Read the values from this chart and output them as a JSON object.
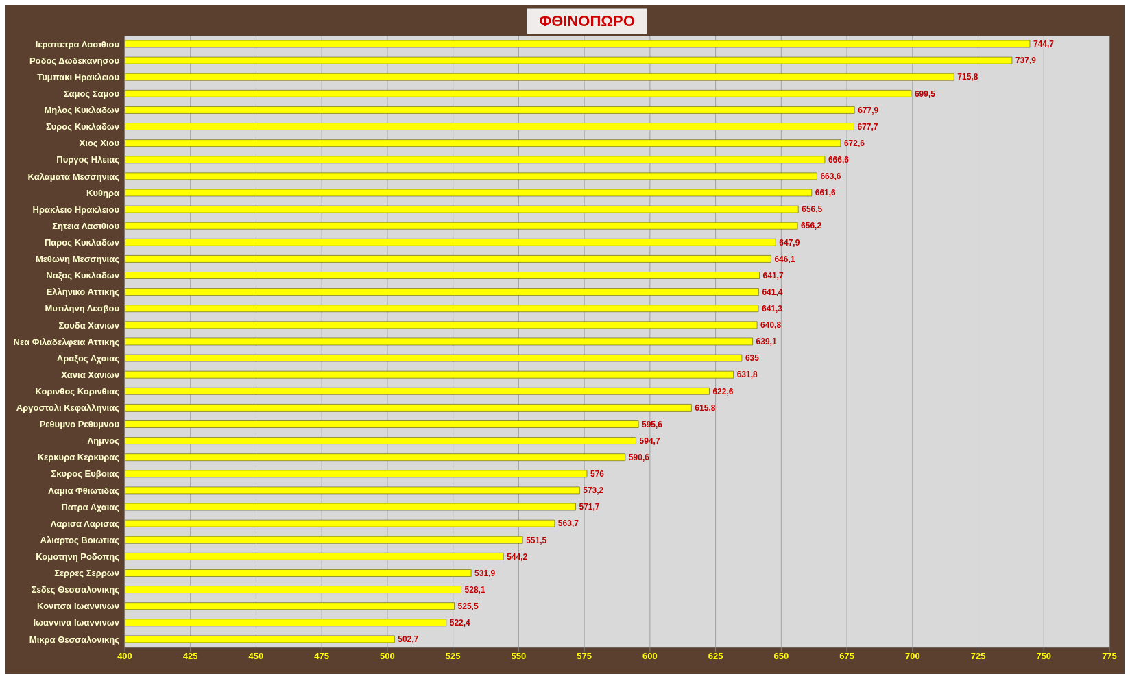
{
  "chart_data": {
    "type": "bar",
    "orientation": "horizontal",
    "title": "ΦΘΙΝΟΠΩΡΟ",
    "categories": [
      "Ιεραπετρα Λασιθιου",
      "Ροδος Δωδεκανησου",
      "Τυμπακι Ηρακλειου",
      "Σαμος Σαμου",
      "Μηλος Κυκλαδων",
      "Συρος Κυκλαδων",
      "Χιος Χιου",
      "Πυργος Ηλειας",
      "Καλαματα Μεσσηνιας",
      "Κυθηρα",
      "Ηρακλειο Ηρακλειου",
      "Σητεια Λασιθιου",
      "Παρος Κυκλαδων",
      "Μεθωνη Μεσσηνιας",
      "Ναξος Κυκλαδων",
      "Ελληνικο Αττικης",
      "Μυτιληνη Λεσβου",
      "Σουδα Χανιων",
      "Νεα Φιλαδελφεια Αττικης",
      "Αραξος Αχαιας",
      "Χανια Χανιων",
      "Κορινθος Κορινθιας",
      "Αργοστολι Κεφαλληνιας",
      "Ρεθυμνο Ρεθυμνου",
      "Λημνος",
      "Κερκυρα Κερκυρας",
      "Σκυρος Ευβοιας",
      "Λαμια Φθιωτιδας",
      "Πατρα Αχαιας",
      "Λαρισα Λαρισας",
      "Αλιαρτος Βοιωτιας",
      "Κομοτηνη Ροδοπης",
      "Σερρες Σερρων",
      "Σεδες Θεσσαλονικης",
      "Κονιτσα Ιωαννινων",
      "Ιωαννινα Ιωαννινων",
      "Μικρα Θεσσαλονικης"
    ],
    "values": [
      744.7,
      737.9,
      715.8,
      699.5,
      677.9,
      677.7,
      672.6,
      666.6,
      663.6,
      661.6,
      656.5,
      656.2,
      647.9,
      646.1,
      641.7,
      641.4,
      641.3,
      640.8,
      639.1,
      635,
      631.8,
      622.6,
      615.8,
      595.6,
      594.7,
      590.6,
      576,
      573.2,
      571.7,
      563.7,
      551.5,
      544.2,
      531.9,
      528.1,
      525.5,
      522.4,
      502.7
    ],
    "value_labels": [
      "744,7",
      "737,9",
      "715,8",
      "699,5",
      "677,9",
      "677,7",
      "672,6",
      "666,6",
      "663,6",
      "661,6",
      "656,5",
      "656,2",
      "647,9",
      "646,1",
      "641,7",
      "641,4",
      "641,3",
      "640,8",
      "639,1",
      "635",
      "631,8",
      "622,6",
      "615,8",
      "595,6",
      "594,7",
      "590,6",
      "576",
      "573,2",
      "571,7",
      "563,7",
      "551,5",
      "544,2",
      "531,9",
      "528,1",
      "525,5",
      "522,4",
      "502,7"
    ],
    "color": "#ffff00",
    "xlim": [
      400,
      775
    ],
    "xticks": [
      400,
      425,
      450,
      475,
      500,
      525,
      550,
      575,
      600,
      625,
      650,
      675,
      700,
      725,
      750,
      775
    ],
    "grid": "x"
  }
}
